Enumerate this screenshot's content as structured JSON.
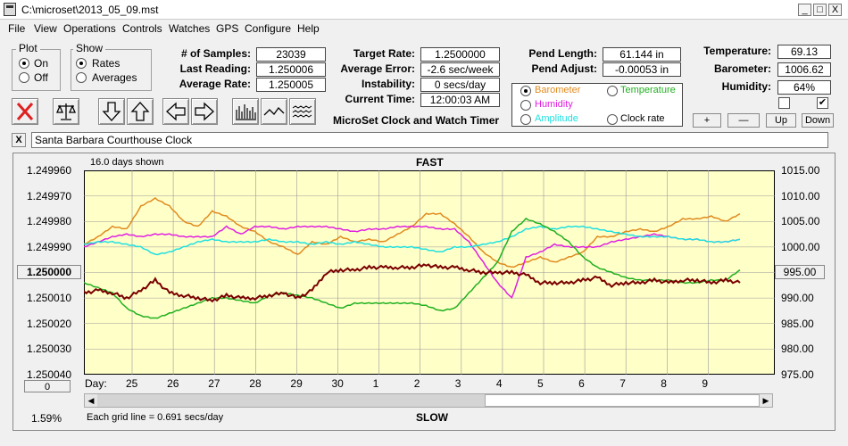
{
  "window": {
    "title": "C:\\microset\\2013_05_09.mst",
    "minimize": "_",
    "maximize": "□",
    "close": "X"
  },
  "menu": [
    "File",
    "View",
    "Operations",
    "Controls",
    "Watches",
    "GPS",
    "Configure",
    "Help"
  ],
  "plot_group": {
    "title": "Plot",
    "on": "On",
    "off": "Off",
    "selected": "On"
  },
  "show_group": {
    "title": "Show",
    "rates": "Rates",
    "averages": "Averages",
    "selected": "Rates"
  },
  "stats": {
    "samples_label": "# of Samples:",
    "samples": "23039",
    "last_label": "Last Reading:",
    "last": "1.250006",
    "avg_label": "Average Rate:",
    "avg": "1.250005"
  },
  "rates": {
    "target_label": "Target Rate:",
    "target": "1.2500000",
    "error_label": "Average Error:",
    "error": "-2.6 sec/week",
    "instab_label": "Instability:",
    "instab": "0 secs/day",
    "time_label": "Current Time:",
    "time": "12:00:03 AM"
  },
  "app_name": "MicroSet Clock and Watch Timer",
  "pend": {
    "length_label": "Pend Length:",
    "length": "61.144 in",
    "adjust_label": "Pend Adjust:",
    "adjust": "-0.00053 in"
  },
  "sensors": {
    "barometer": "Barometer",
    "humidity": "Humidity",
    "amplitude": "Amplitude",
    "temperature": "Temperature",
    "clock_rate": "Clock rate",
    "selected": "Barometer"
  },
  "env": {
    "temp_label": "Temperature:",
    "temp": "69.13",
    "baro_label": "Barometer:",
    "baro": "1006.62",
    "humid_label": "Humidity:",
    "humid": "64%"
  },
  "scale_buttons": {
    "plus": "+",
    "minus": "—",
    "up": "Up",
    "down": "Down"
  },
  "note_close": "X",
  "note_text": "Santa Barbara Courthouse Clock",
  "colors": {
    "barometer": "#e08a1e",
    "humidity": "#e020e0",
    "amplitude": "#20e0e0",
    "temperature": "#20b020",
    "clock_rate": "#7a0000",
    "plot_bg": "#ffffc8"
  },
  "chart_data": {
    "type": "line",
    "title": "FAST",
    "subtitle": "16.0 days shown",
    "bottom_label": "SLOW",
    "footer_left": "1.59%",
    "footer_note": "Each grid line = 0.691 secs/day",
    "xlabel": "Day:",
    "x_ticks": [
      "25",
      "26",
      "27",
      "28",
      "29",
      "30",
      "1",
      "2",
      "3",
      "4",
      "5",
      "6",
      "7",
      "8",
      "9"
    ],
    "left_axis": {
      "ticks": [
        "1.249960",
        "1.249970",
        "1.249980",
        "1.249990",
        "1.250000",
        "1.250010",
        "1.250020",
        "1.250030",
        "1.250040"
      ],
      "ylim": [
        1.25004,
        1.24996
      ],
      "center_button": "1.250000"
    },
    "right_axis": {
      "ticks": [
        "1015.00",
        "1010.00",
        "1005.00",
        "1000.00",
        "995.00",
        "990.00",
        "985.00",
        "980.00",
        "975.00"
      ],
      "ylim": [
        975,
        1015
      ],
      "center_button": "995.00"
    },
    "scroll_button": "0",
    "series": [
      {
        "name": "Barometer",
        "axis": "right",
        "values": [
          1000.5,
          1002,
          1004,
          1003.5,
          1008,
          1009.5,
          1008,
          1005,
          1004,
          1007,
          1006,
          1004,
          1003,
          1001,
          1000,
          998.5,
          1001,
          1000.5,
          1002,
          1001,
          1001.5,
          1001,
          1002.5,
          1004,
          1006.5,
          1006.5,
          1004.5,
          1002,
          999,
          997,
          996,
          997,
          998,
          997,
          998,
          999,
          1002,
          1002,
          1003,
          1003.5,
          1003,
          1004,
          1005.5,
          1005.5,
          1006,
          1005,
          1006.5
        ]
      },
      {
        "name": "Humidity",
        "axis": "right",
        "values": [
          1000,
          1001,
          1002,
          1002.5,
          1002,
          1002.5,
          1002.5,
          1002,
          1002,
          1002,
          1004,
          1002.5,
          1004,
          1004,
          1003.5,
          1004,
          1004,
          1004,
          1003.5,
          1003,
          1003.5,
          1003.5,
          1004,
          1004,
          1004,
          1003.5,
          1003.5,
          1001,
          997,
          993,
          990,
          998,
          999,
          1000.5,
          1000,
          1000,
          1000,
          1001,
          1001.5,
          1002,
          1002.5,
          1002,
          1001.5,
          1001.5,
          1001,
          1001,
          1001.5
        ]
      },
      {
        "name": "Amplitude",
        "axis": "right",
        "values": [
          1000.5,
          1001,
          1001,
          1000.5,
          1000,
          998.5,
          999,
          1000,
          1001,
          1001.5,
          1001,
          1001,
          1001,
          1001.5,
          1001,
          1001,
          1000.5,
          1001,
          1000.5,
          1001,
          1000.5,
          1000,
          1000,
          1000,
          999.5,
          999,
          1000,
          1000,
          1000.5,
          1001,
          1002,
          1003.5,
          1004,
          1003.5,
          1004,
          1004,
          1003.5,
          1003,
          1002.5,
          1002,
          1002,
          1002,
          1001.5,
          1001.5,
          1001,
          1001,
          1001.5
        ]
      },
      {
        "name": "Temperature",
        "axis": "right",
        "values": [
          993,
          992,
          991,
          988,
          986.5,
          986,
          987,
          988,
          989,
          990,
          990,
          989.5,
          989,
          990.5,
          991,
          990.5,
          990,
          989,
          988,
          989,
          989,
          989,
          989,
          989,
          988.5,
          987.5,
          988,
          991,
          994,
          997,
          1003,
          1005.5,
          1004.5,
          1003,
          1001,
          998,
          996,
          995,
          994,
          993.5,
          993.5,
          993.5,
          993,
          993,
          993.5,
          993.5,
          995.5
        ]
      },
      {
        "name": "Clock rate",
        "axis": "right",
        "values": [
          991,
          991.5,
          991,
          990,
          991.5,
          993.5,
          991,
          990.5,
          990,
          989.5,
          990.5,
          990,
          990,
          990.5,
          991,
          990,
          991.5,
          995,
          995.5,
          995.5,
          996,
          996,
          996,
          996,
          996.5,
          996,
          996,
          995.5,
          995,
          995,
          995,
          994.5,
          993,
          993,
          993,
          993.5,
          994,
          992.5,
          993,
          993,
          993.5,
          993,
          993.5,
          993.5,
          993,
          993.5,
          993
        ]
      }
    ]
  }
}
